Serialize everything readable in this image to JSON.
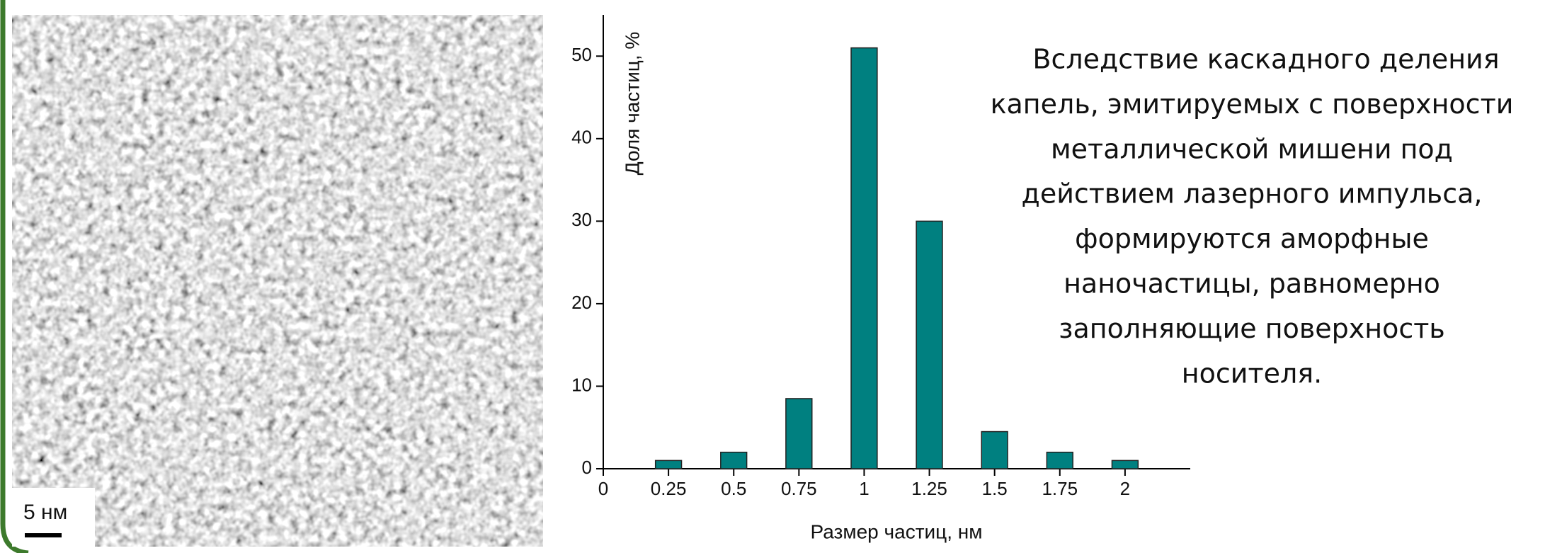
{
  "chart_data": {
    "type": "bar",
    "x_label": "Размер частиц, нм",
    "y_label": "Доля частиц, %",
    "x": [
      0.25,
      0.5,
      0.75,
      1,
      1.25,
      1.5,
      1.75,
      2
    ],
    "values": [
      1,
      2,
      8.5,
      51,
      30,
      4.5,
      2,
      1
    ],
    "color": "#008080",
    "xlim": [
      0,
      2.25
    ],
    "xticks": [
      0,
      0.25,
      0.5,
      0.75,
      1,
      1.25,
      1.5,
      1.75,
      2
    ],
    "ylim": [
      0,
      55
    ],
    "yticks": [
      0,
      10,
      20,
      30,
      40,
      50
    ]
  },
  "micrograph": {
    "scale_bar_label": "5 нм"
  },
  "description_lines": [
    "Вследствие каскадного деления",
    "капель, эмитируемых с поверхности",
    "металлической мишени под",
    "действием лазерного импульса,",
    "формируются аморфные",
    "наночастицы, равномерно",
    "заполняющие поверхность",
    "носителя."
  ]
}
